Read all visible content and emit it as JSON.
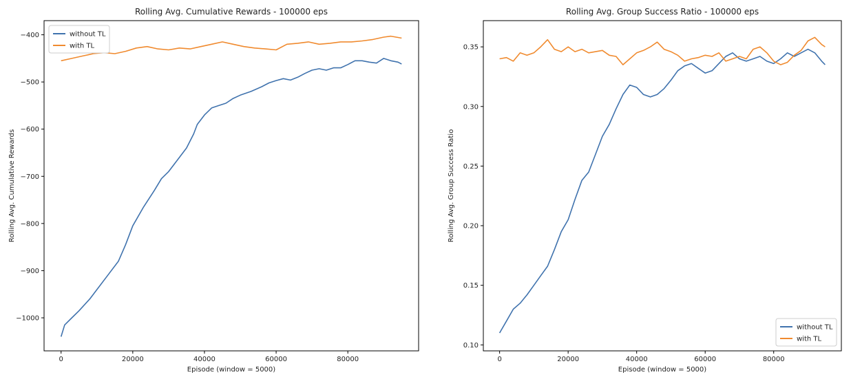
{
  "chart_data": [
    {
      "type": "line",
      "title": "Rolling Avg. Cumulative Rewards - 100000 eps",
      "xlabel": "Episode (window = 5000)",
      "ylabel": "Rolling Avg. Cumulative Rewards",
      "xlim": [
        -4750,
        99750
      ],
      "ylim": [
        -1070,
        -370
      ],
      "xticks": [
        0,
        20000,
        40000,
        60000,
        80000
      ],
      "yticks": [
        -1000,
        -900,
        -800,
        -700,
        -600,
        -500,
        -400
      ],
      "legend_position": "upper left",
      "grid": false,
      "series": [
        {
          "name": "without TL",
          "color": "#3f72ad",
          "x": [
            0,
            1000,
            3000,
            5000,
            8000,
            10000,
            13000,
            16000,
            18000,
            20000,
            23000,
            26000,
            28000,
            30000,
            33000,
            35000,
            37000,
            38000,
            40000,
            42000,
            44000,
            46000,
            48000,
            50000,
            53000,
            56000,
            58000,
            60000,
            62000,
            64000,
            66000,
            68000,
            70000,
            72000,
            74000,
            76000,
            78000,
            80000,
            82000,
            84000,
            86000,
            88000,
            90000,
            92000,
            94000,
            95000
          ],
          "y": [
            -1040,
            -1015,
            -1000,
            -985,
            -960,
            -940,
            -910,
            -880,
            -845,
            -805,
            -765,
            -730,
            -705,
            -690,
            -660,
            -640,
            -610,
            -590,
            -570,
            -555,
            -550,
            -545,
            -535,
            -528,
            -520,
            -510,
            -502,
            -497,
            -493,
            -496,
            -490,
            -482,
            -475,
            -472,
            -475,
            -470,
            -470,
            -463,
            -455,
            -455,
            -458,
            -460,
            -450,
            -455,
            -458,
            -462
          ]
        },
        {
          "name": "with TL",
          "color": "#f08a2e",
          "x": [
            0,
            3000,
            6000,
            9000,
            12000,
            15000,
            18000,
            21000,
            24000,
            27000,
            30000,
            33000,
            36000,
            39000,
            42000,
            45000,
            48000,
            51000,
            54000,
            57000,
            60000,
            63000,
            66000,
            69000,
            72000,
            75000,
            78000,
            81000,
            84000,
            87000,
            90000,
            92000,
            95000
          ],
          "y": [
            -455,
            -450,
            -445,
            -440,
            -438,
            -440,
            -435,
            -428,
            -425,
            -430,
            -432,
            -428,
            -430,
            -425,
            -420,
            -415,
            -420,
            -425,
            -428,
            -430,
            -432,
            -420,
            -418,
            -415,
            -420,
            -418,
            -415,
            -415,
            -413,
            -410,
            -405,
            -403,
            -407
          ]
        }
      ]
    },
    {
      "type": "line",
      "title": "Rolling Avg. Group Success Ratio - 100000 eps",
      "xlabel": "Episode (window = 5000)",
      "ylabel": "Rolling Avg. Group Success Ratio",
      "xlim": [
        -4750,
        99750
      ],
      "ylim": [
        0.095,
        0.372
      ],
      "xticks": [
        0,
        20000,
        40000,
        60000,
        80000
      ],
      "yticks": [
        0.1,
        0.15,
        0.2,
        0.25,
        0.3,
        0.35
      ],
      "ytick_labels": [
        "0.10",
        "0.15",
        "0.20",
        "0.25",
        "0.30",
        "0.35"
      ],
      "legend_position": "lower right",
      "grid": false,
      "series": [
        {
          "name": "without TL",
          "color": "#3f72ad",
          "x": [
            0,
            2000,
            4000,
            6000,
            8000,
            10000,
            12000,
            14000,
            16000,
            18000,
            20000,
            22000,
            24000,
            26000,
            28000,
            30000,
            32000,
            34000,
            36000,
            38000,
            40000,
            42000,
            44000,
            46000,
            48000,
            50000,
            52000,
            54000,
            56000,
            58000,
            60000,
            62000,
            64000,
            66000,
            68000,
            70000,
            72000,
            74000,
            76000,
            78000,
            80000,
            82000,
            84000,
            86000,
            88000,
            90000,
            92000,
            94000,
            95000
          ],
          "y": [
            0.11,
            0.12,
            0.13,
            0.135,
            0.142,
            0.15,
            0.158,
            0.166,
            0.18,
            0.195,
            0.205,
            0.222,
            0.238,
            0.245,
            0.26,
            0.275,
            0.285,
            0.298,
            0.31,
            0.318,
            0.316,
            0.31,
            0.308,
            0.31,
            0.315,
            0.322,
            0.33,
            0.334,
            0.336,
            0.332,
            0.328,
            0.33,
            0.336,
            0.342,
            0.345,
            0.34,
            0.338,
            0.34,
            0.342,
            0.338,
            0.336,
            0.34,
            0.345,
            0.342,
            0.345,
            0.348,
            0.345,
            0.338,
            0.335
          ]
        },
        {
          "name": "with TL",
          "color": "#f08a2e",
          "x": [
            0,
            2000,
            4000,
            6000,
            8000,
            10000,
            12000,
            14000,
            16000,
            18000,
            20000,
            22000,
            24000,
            26000,
            28000,
            30000,
            32000,
            34000,
            36000,
            38000,
            40000,
            42000,
            44000,
            46000,
            48000,
            50000,
            52000,
            54000,
            56000,
            58000,
            60000,
            62000,
            64000,
            66000,
            68000,
            70000,
            72000,
            74000,
            76000,
            78000,
            80000,
            82000,
            84000,
            86000,
            88000,
            90000,
            92000,
            94000,
            95000
          ],
          "y": [
            0.34,
            0.341,
            0.338,
            0.345,
            0.343,
            0.345,
            0.35,
            0.356,
            0.348,
            0.346,
            0.35,
            0.346,
            0.348,
            0.345,
            0.346,
            0.347,
            0.343,
            0.342,
            0.335,
            0.34,
            0.345,
            0.347,
            0.35,
            0.354,
            0.348,
            0.346,
            0.343,
            0.338,
            0.34,
            0.341,
            0.343,
            0.342,
            0.345,
            0.338,
            0.34,
            0.342,
            0.34,
            0.348,
            0.35,
            0.345,
            0.338,
            0.335,
            0.337,
            0.343,
            0.347,
            0.355,
            0.358,
            0.352,
            0.35
          ]
        }
      ]
    }
  ]
}
